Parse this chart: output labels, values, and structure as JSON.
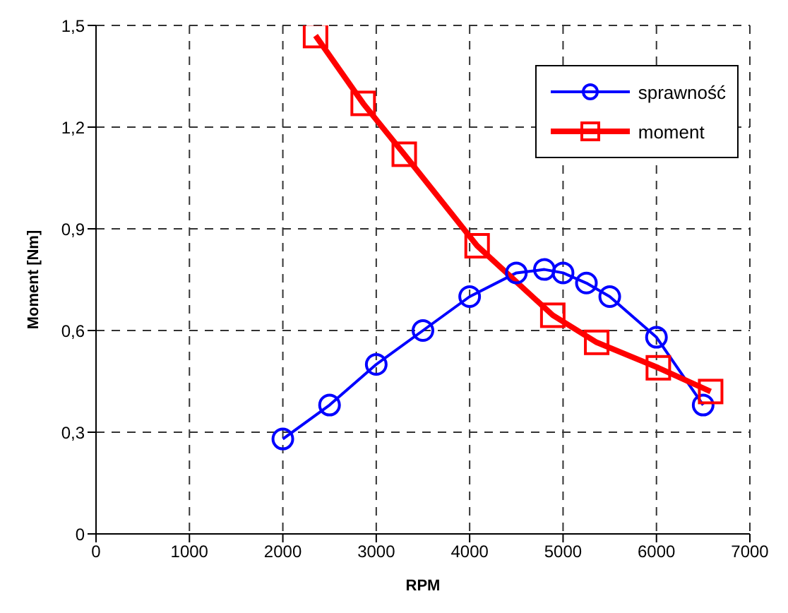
{
  "chart_data": {
    "type": "line",
    "xlabel": "RPM",
    "ylabel": "Moment [Nm]",
    "xlim": [
      0,
      7000
    ],
    "xticks": [
      0,
      1000,
      2000,
      3000,
      4000,
      5000,
      6000,
      7000
    ],
    "ylim": [
      0,
      1.5
    ],
    "yticks": [
      {
        "value": 0,
        "label": "0"
      },
      {
        "value": 0.3,
        "label": "0,3"
      },
      {
        "value": 0.6,
        "label": "0,6"
      },
      {
        "value": 0.9,
        "label": "0,9"
      },
      {
        "value": 1.2,
        "label": "1,2"
      },
      {
        "value": 1.5,
        "label": "1,5"
      }
    ],
    "grid": true,
    "legend": "top right",
    "line_style": "solid",
    "series": [
      {
        "name": "sprawność",
        "color": "#0000ff",
        "marker": "circle",
        "x": [
          2000,
          2500,
          3000,
          3500,
          4000,
          4500,
          4800,
          5000,
          5250,
          5500,
          6000,
          6500
        ],
        "values": [
          0.28,
          0.38,
          0.5,
          0.6,
          0.7,
          0.77,
          0.78,
          0.77,
          0.74,
          0.7,
          0.58,
          0.38
        ]
      },
      {
        "name": "moment",
        "color": "#ff0000",
        "marker": "square",
        "x": [
          2350,
          2860,
          3300,
          4080,
          4890,
          5360,
          6020,
          6580
        ],
        "values": [
          1.47,
          1.27,
          1.12,
          0.85,
          0.645,
          0.565,
          0.49,
          0.42
        ]
      }
    ]
  }
}
